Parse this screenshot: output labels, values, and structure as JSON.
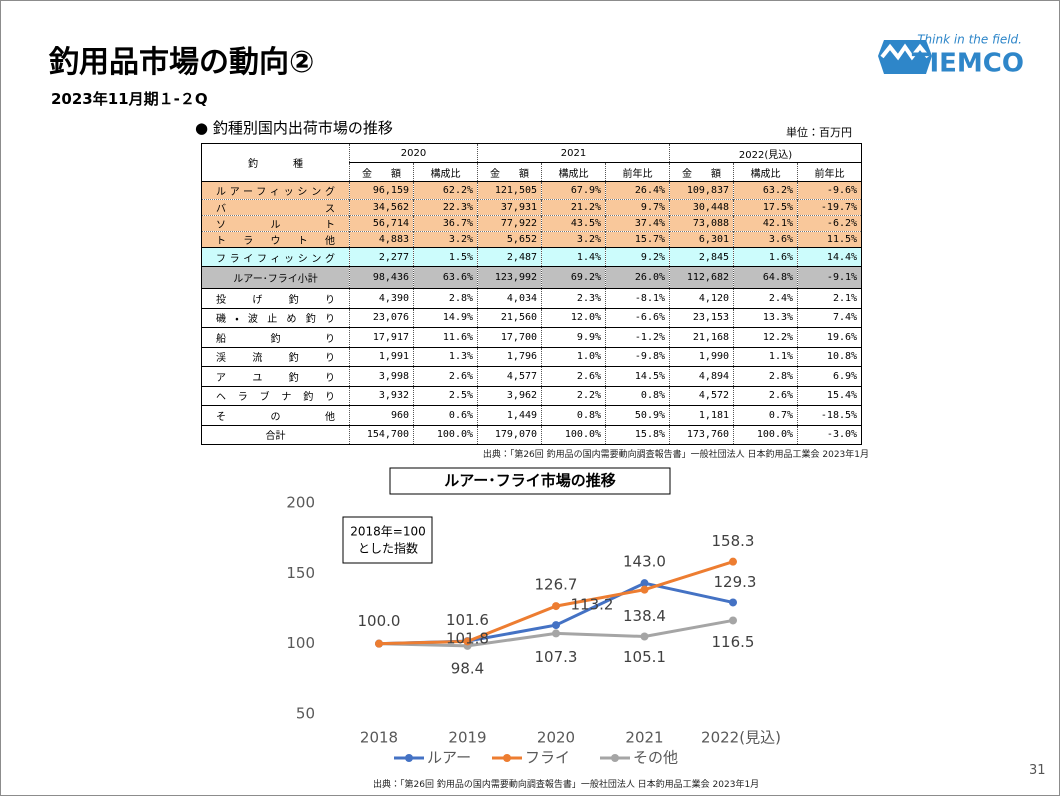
{
  "header": {
    "title": "釣用品市場の動向②",
    "subtitle": "2023年11月期１-２Q",
    "logo_tagline": "Think in the field.",
    "logo_name": "TIEMCO"
  },
  "table": {
    "title": "● 釣種別国内出荷市場の推移",
    "unit": "単位：百万円",
    "label_header": "釣種",
    "years": [
      "2020",
      "2021",
      "2022(見込)"
    ],
    "columns": [
      "金額",
      "構成比",
      "金額",
      "構成比",
      "前年比",
      "金額",
      "構成比",
      "前年比"
    ],
    "rows": [
      [
        "ルアーフィッシング",
        "96,159",
        "62.2%",
        "121,505",
        "67.9%",
        "26.4%",
        "109,837",
        "63.2%",
        "-9.6%"
      ],
      [
        "バス",
        "34,562",
        "22.3%",
        "37,931",
        "21.2%",
        "9.7%",
        "30,448",
        "17.5%",
        "-19.7%"
      ],
      [
        "ソルト",
        "56,714",
        "36.7%",
        "77,922",
        "43.5%",
        "37.4%",
        "73,088",
        "42.1%",
        "-6.2%"
      ],
      [
        "トラウト他",
        "4,883",
        "3.2%",
        "5,652",
        "3.2%",
        "15.7%",
        "6,301",
        "3.6%",
        "11.5%"
      ],
      [
        "フライフィッシング",
        "2,277",
        "1.5%",
        "2,487",
        "1.4%",
        "9.2%",
        "2,845",
        "1.6%",
        "14.4%"
      ],
      [
        "ルアー･フライ小計",
        "98,436",
        "63.6%",
        "123,992",
        "69.2%",
        "26.0%",
        "112,682",
        "64.8%",
        "-9.1%"
      ],
      [
        "投げ釣り",
        "4,390",
        "2.8%",
        "4,034",
        "2.3%",
        "-8.1%",
        "4,120",
        "2.4%",
        "2.1%"
      ],
      [
        "磯・波止め釣り",
        "23,076",
        "14.9%",
        "21,560",
        "12.0%",
        "-6.6%",
        "23,153",
        "13.3%",
        "7.4%"
      ],
      [
        "船釣り",
        "17,917",
        "11.6%",
        "17,700",
        "9.9%",
        "-1.2%",
        "21,168",
        "12.2%",
        "19.6%"
      ],
      [
        "渓流釣り",
        "1,991",
        "1.3%",
        "1,796",
        "1.0%",
        "-9.8%",
        "1,990",
        "1.1%",
        "10.8%"
      ],
      [
        "アユ釣り",
        "3,998",
        "2.6%",
        "4,577",
        "2.6%",
        "14.5%",
        "4,894",
        "2.8%",
        "6.9%"
      ],
      [
        "ヘラブナ釣り",
        "3,932",
        "2.5%",
        "3,962",
        "2.2%",
        "0.8%",
        "4,572",
        "2.6%",
        "15.4%"
      ],
      [
        "その他",
        "960",
        "0.6%",
        "1,449",
        "0.8%",
        "50.9%",
        "1,181",
        "0.7%",
        "-18.5%"
      ],
      [
        "合計",
        "154,700",
        "100.0%",
        "179,070",
        "100.0%",
        "15.8%",
        "173,760",
        "100.0%",
        "-3.0%"
      ]
    ],
    "source": "出典：「第26回 釣用品の国内需要動向調査報告書」一般社団法人 日本釣用品工業会 2023年1月"
  },
  "chart_data": {
    "type": "line",
    "title": "ルアー･フライ市場の推移",
    "annotation": [
      "2018年=100",
      "とした指数"
    ],
    "categories": [
      "2018",
      "2019",
      "2020",
      "2021",
      "2022(見込)"
    ],
    "ylim": [
      50,
      200
    ],
    "yticks": [
      50,
      100,
      150,
      200
    ],
    "series": [
      {
        "name": "ルアー",
        "color": "#4472c4",
        "values": [
          100.0,
          101.8,
          113.2,
          143.0,
          129.3
        ],
        "value_labels": [
          "100.0",
          "101.8",
          "113.2",
          "143.0",
          "129.3"
        ]
      },
      {
        "name": "フライ",
        "color": "#ed7d31",
        "values": [
          100.0,
          101.6,
          126.7,
          138.4,
          158.3
        ],
        "value_labels": [
          null,
          "101.6",
          "126.7",
          "138.4",
          "158.3"
        ]
      },
      {
        "name": "その他",
        "color": "#a5a5a5",
        "values": [
          100.0,
          98.4,
          107.3,
          105.1,
          116.5
        ],
        "value_labels": [
          null,
          "98.4",
          "107.3",
          "105.1",
          "116.5"
        ]
      }
    ],
    "source": "出典：「第26回 釣用品の国内需要動向調査報告書」一般社団法人 日本釣用品工業会 2023年1月"
  },
  "page_number": "31"
}
